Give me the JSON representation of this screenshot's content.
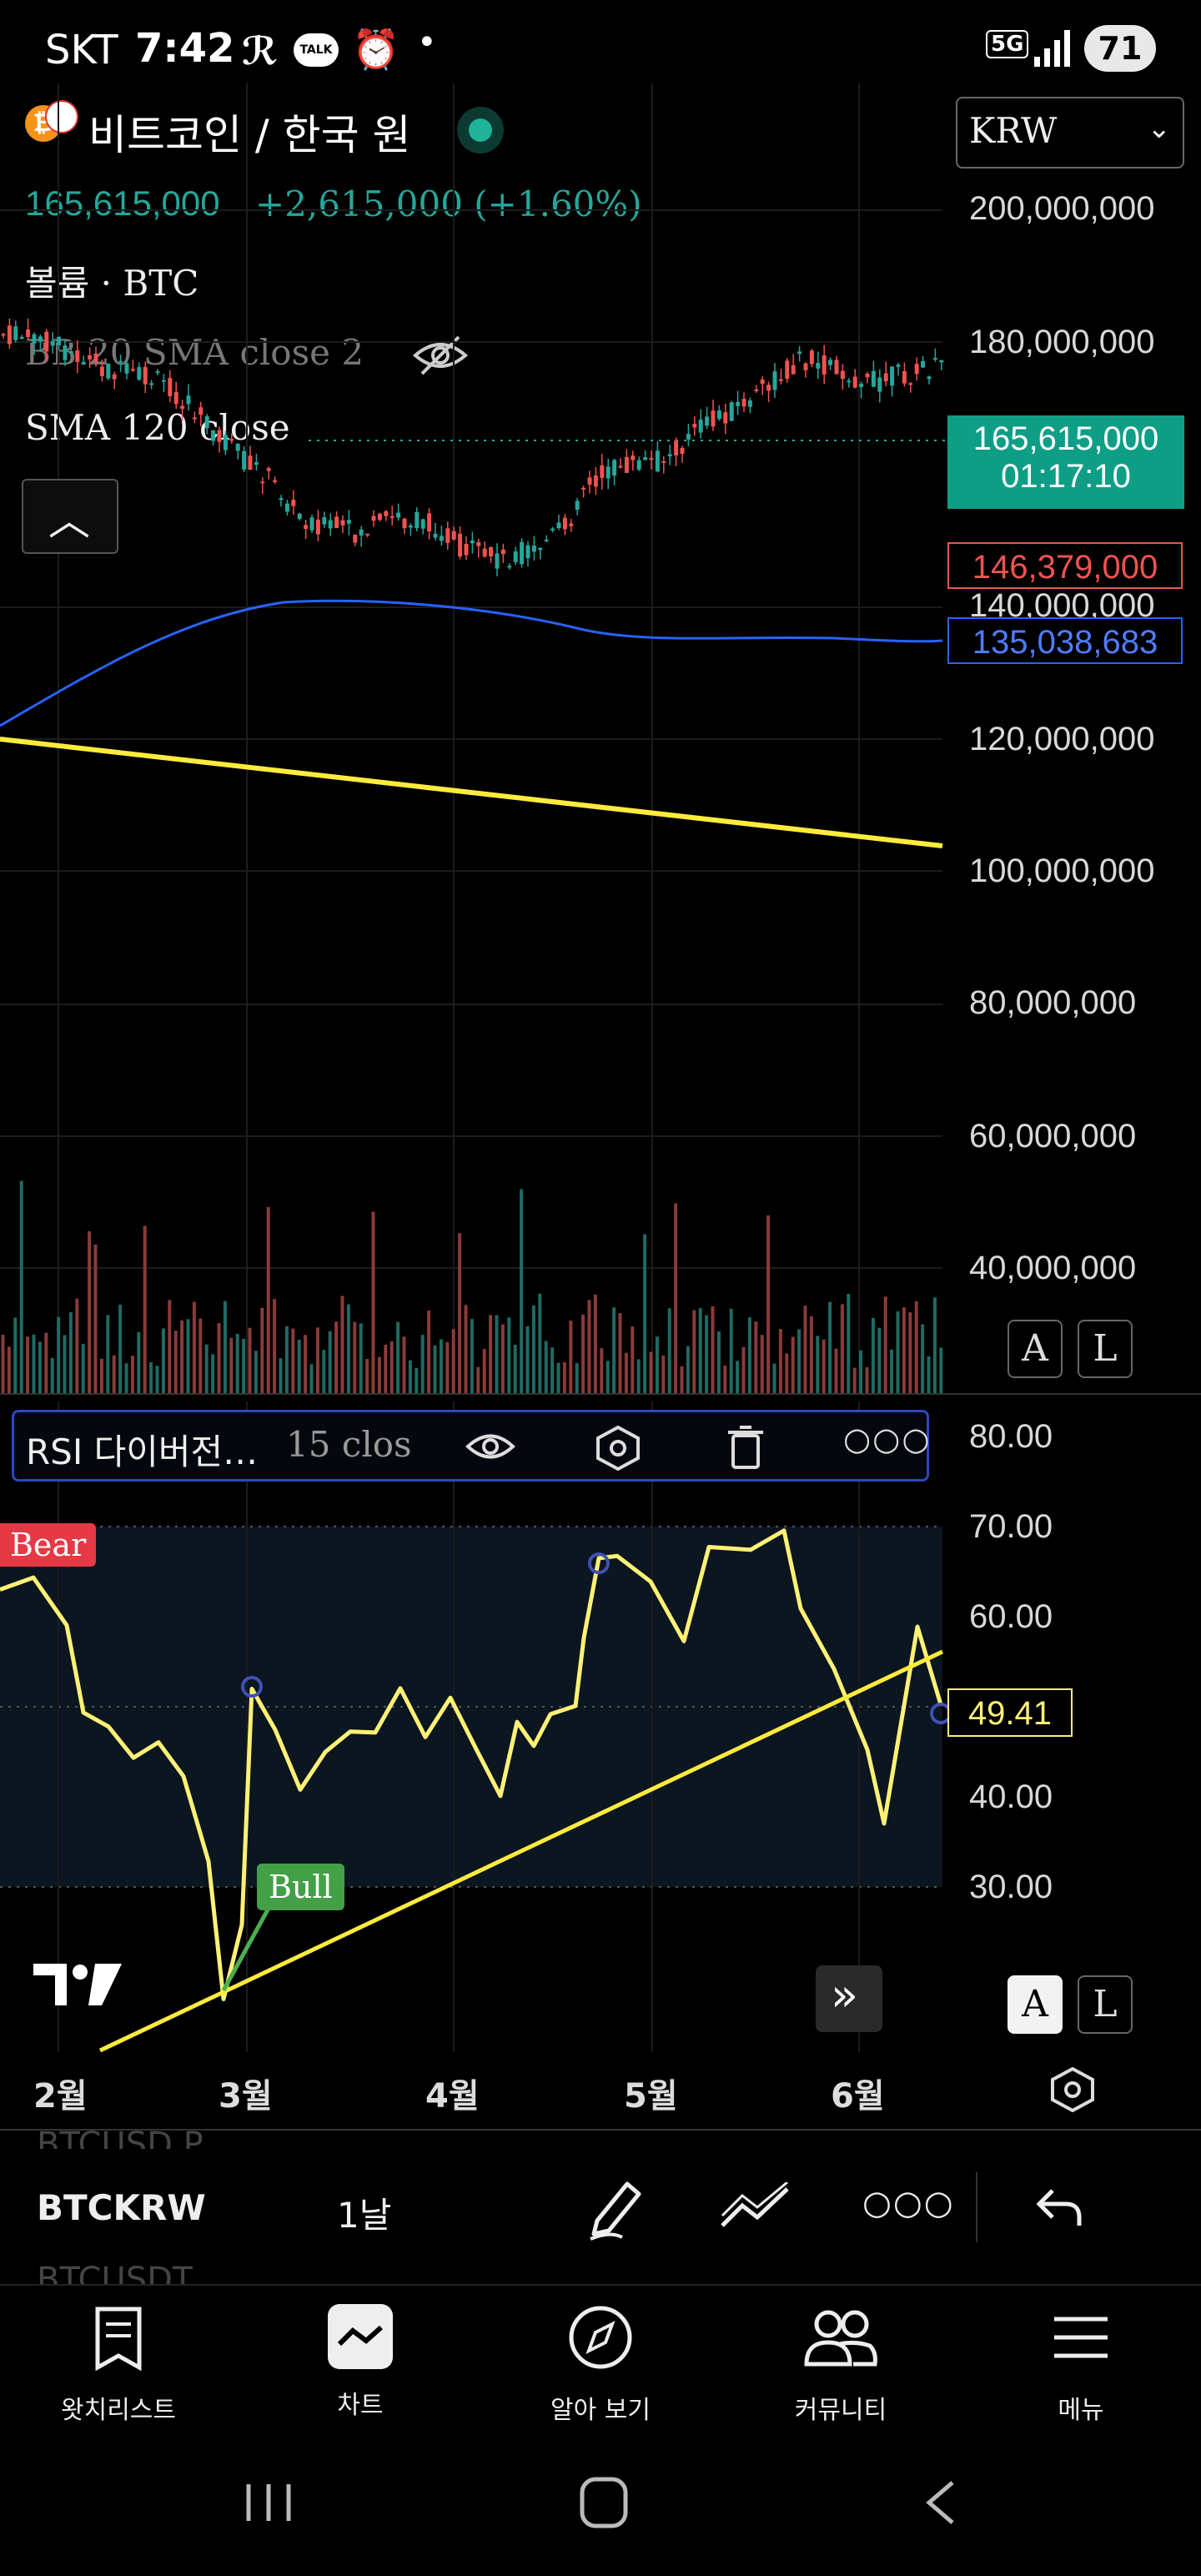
{
  "status_bar": {
    "carrier": "SKT",
    "time": "7:42",
    "network": "5G",
    "battery": "71"
  },
  "header": {
    "title": "비트코인 / 한국 원",
    "currency_select": "KRW",
    "price": "165,615,000",
    "change": "+2,615,000 (+1.60%)"
  },
  "indicators": {
    "volume": "볼륨 · BTC",
    "bb": "BB 20 SMA close 2",
    "sma": "SMA 120 close"
  },
  "price_axis": [
    "200,000,000",
    "180,000,000",
    "140,000,000",
    "120,000,000",
    "100,000,000",
    "80,000,000",
    "60,000,000",
    "40,000,000"
  ],
  "price_tags": {
    "current_price": "165,615,000",
    "countdown": "01:17:10",
    "high_line": "146,379,000",
    "sma_value": "135,038,683"
  },
  "scale_buttons": {
    "auto": "A",
    "log": "L"
  },
  "rsi_panel": {
    "title": "RSI 다이버전…",
    "params": "15 clos",
    "axis": [
      "80.00",
      "70.00",
      "60.00",
      "40.00",
      "30.00"
    ],
    "value": "49.41",
    "bear_label": "Bear",
    "bull_label": "Bull"
  },
  "time_axis": [
    "2월",
    "3월",
    "4월",
    "5월",
    "6월"
  ],
  "symbol_toolbar": {
    "prev_symbol": "BTCUSD.P",
    "symbol": "BTCKRW",
    "next_symbol": "BTCUSDT",
    "interval": "1날"
  },
  "bottom_nav": [
    {
      "label": "왓치리스트",
      "icon": "watchlist-icon"
    },
    {
      "label": "차트",
      "icon": "chart-icon"
    },
    {
      "label": "알아 보기",
      "icon": "compass-icon"
    },
    {
      "label": "커뮤니티",
      "icon": "community-icon"
    },
    {
      "label": "메뉴",
      "icon": "menu-icon"
    }
  ],
  "colors": {
    "up": "#26a69a",
    "down": "#ef5350",
    "sma": "#2962ff",
    "trendline": "#ffeb3b",
    "rsi": "#fff176"
  }
}
